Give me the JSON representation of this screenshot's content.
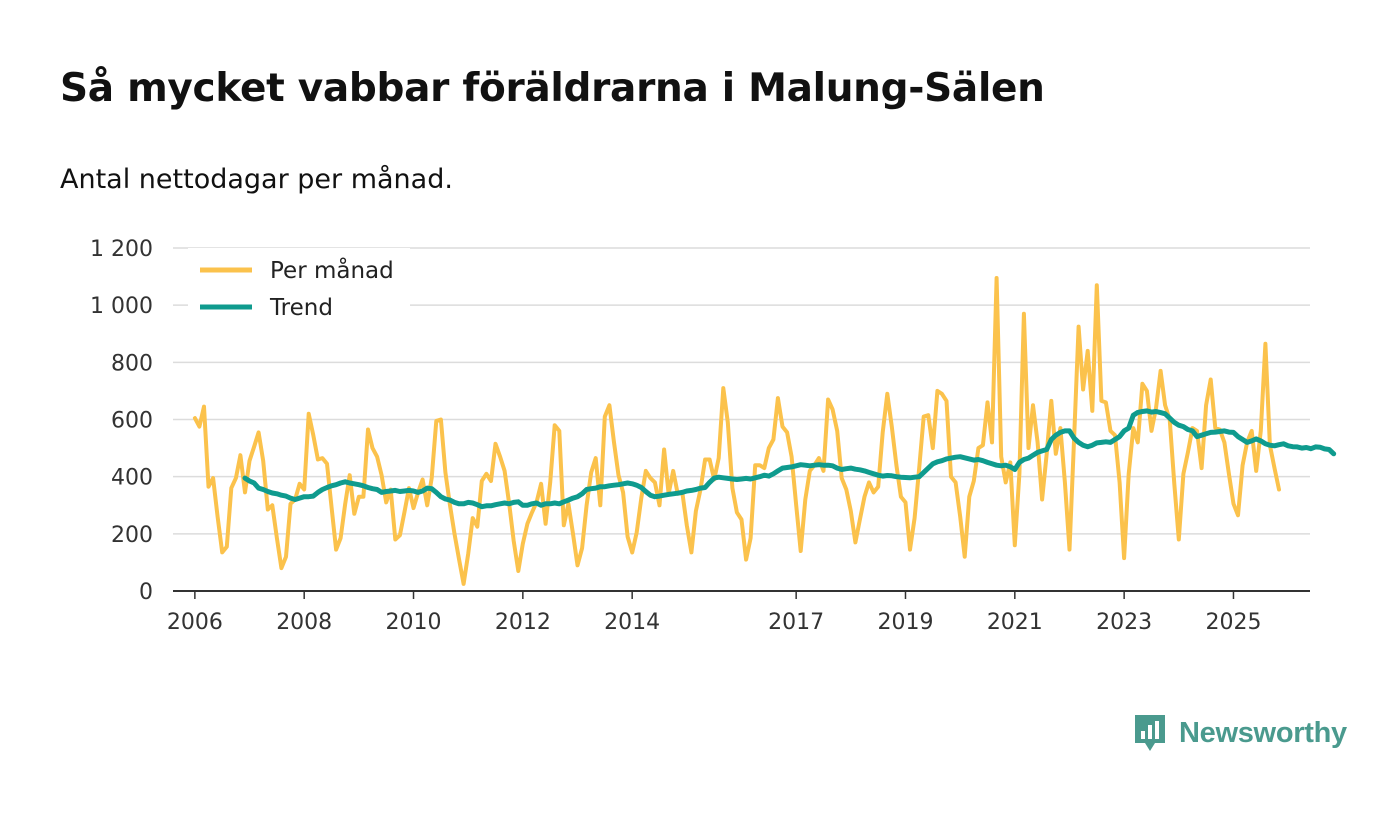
{
  "header": {
    "title": "Så mycket vabbar föräldrarna i Malung-Sälen",
    "subtitle": "Antal nettodagar per månad."
  },
  "brand": {
    "name": "Newsworthy",
    "color": "#4a9a8e",
    "icon": "newsworthy-logo-icon"
  },
  "chart_data": {
    "type": "line",
    "title": "Så mycket vabbar föräldrarna i Malung-Sälen",
    "subtitle": "Antal nettodagar per månad.",
    "xlabel": "",
    "ylabel": "",
    "ylim": [
      0,
      1200
    ],
    "xlim": [
      2005.6,
      2026.4
    ],
    "yticks": [
      0,
      200,
      400,
      600,
      800,
      1000,
      1200
    ],
    "ytick_labels": [
      "0",
      "200",
      "400",
      "600",
      "800",
      "1 000",
      "1 200"
    ],
    "xticks": [
      2006,
      2008,
      2010,
      2012,
      2014,
      2017,
      2019,
      2021,
      2023,
      2025
    ],
    "xtick_labels": [
      "2006",
      "2008",
      "2010",
      "2012",
      "2014",
      "2017",
      "2019",
      "2021",
      "2023",
      "2025"
    ],
    "grid": true,
    "legend": "top-left",
    "x": {
      "start_year": 2006,
      "start_month": 1,
      "step": "month",
      "length": 233,
      "note": "Monthly series; the x axis places January 2006 at 2006.0 and each month at 1/12 year."
    },
    "series": [
      {
        "name": "Per månad",
        "color": "#fbc24c",
        "values": [
          605,
          575,
          645,
          365,
          395,
          260,
          135,
          155,
          360,
          395,
          475,
          345,
          455,
          505,
          555,
          455,
          285,
          300,
          185,
          80,
          120,
          305,
          320,
          375,
          355,
          620,
          545,
          460,
          465,
          445,
          295,
          145,
          185,
          305,
          405,
          270,
          330,
          330,
          565,
          500,
          470,
          405,
          310,
          355,
          180,
          195,
          275,
          360,
          290,
          345,
          390,
          300,
          395,
          595,
          600,
          415,
          300,
          200,
          110,
          25,
          130,
          255,
          225,
          385,
          410,
          385,
          515,
          470,
          420,
          305,
          175,
          70,
          165,
          235,
          275,
          310,
          375,
          235,
          380,
          580,
          560,
          230,
          305,
          200,
          90,
          150,
          300,
          415,
          465,
          300,
          610,
          650,
          520,
          405,
          345,
          190,
          135,
          205,
          325,
          420,
          395,
          380,
          300,
          495,
          340,
          420,
          340,
          345,
          230,
          135,
          280,
          355,
          460,
          460,
          390,
          465,
          710,
          590,
          360,
          275,
          250,
          110,
          185,
          440,
          440,
          430,
          500,
          530,
          675,
          575,
          555,
          470,
          300,
          140,
          320,
          420,
          440,
          465,
          420,
          670,
          635,
          560,
          395,
          355,
          280,
          170,
          250,
          330,
          380,
          345,
          365,
          555,
          690,
          575,
          440,
          330,
          310,
          145,
          255,
          430,
          610,
          615,
          500,
          700,
          690,
          665,
          400,
          380,
          260,
          120,
          330,
          385,
          500,
          510,
          660,
          520,
          1095,
          470,
          380,
          450,
          160,
          410,
          970,
          500,
          650,
          520,
          320,
          480,
          665,
          480,
          570,
          380,
          145,
          525,
          925,
          705,
          840,
          630,
          1070,
          665,
          660,
          560,
          545,
          380,
          115,
          410,
          570,
          520,
          725,
          700,
          560,
          640,
          770,
          650,
          600,
          375,
          180,
          410,
          485,
          570,
          560,
          430,
          650,
          740,
          570,
          565,
          520,
          410,
          305,
          265,
          440,
          520,
          560,
          420,
          560,
          865,
          510,
          430,
          355
        ]
      },
      {
        "name": "Trend",
        "color": "#0f9b8e",
        "start_index": 11,
        "values": [
          395,
          385,
          378,
          360,
          355,
          348,
          343,
          340,
          335,
          332,
          325,
          320,
          325,
          330,
          330,
          332,
          345,
          355,
          362,
          368,
          372,
          378,
          382,
          378,
          375,
          372,
          368,
          362,
          358,
          355,
          345,
          348,
          350,
          352,
          348,
          350,
          352,
          350,
          345,
          350,
          360,
          358,
          345,
          330,
          322,
          318,
          310,
          305,
          305,
          310,
          308,
          302,
          295,
          298,
          298,
          302,
          305,
          308,
          305,
          310,
          312,
          300,
          300,
          305,
          308,
          300,
          305,
          305,
          308,
          305,
          312,
          318,
          325,
          330,
          340,
          355,
          358,
          360,
          365,
          365,
          368,
          370,
          372,
          375,
          378,
          375,
          370,
          362,
          348,
          335,
          330,
          332,
          335,
          338,
          340,
          342,
          345,
          350,
          352,
          355,
          360,
          362,
          380,
          395,
          398,
          396,
          394,
          392,
          390,
          392,
          394,
          392,
          396,
          400,
          405,
          402,
          410,
          420,
          430,
          432,
          434,
          438,
          442,
          440,
          438,
          440,
          442,
          440,
          440,
          438,
          430,
          425,
          428,
          430,
          426,
          424,
          420,
          415,
          410,
          405,
          402,
          404,
          403,
          400,
          398,
          397,
          396,
          398,
          400,
          415,
          430,
          445,
          452,
          456,
          462,
          465,
          468,
          470,
          466,
          462,
          458,
          460,
          456,
          450,
          445,
          440,
          438,
          440,
          435,
          425,
          450,
          460,
          465,
          475,
          485,
          490,
          495,
          530,
          545,
          555,
          560,
          560,
          535,
          520,
          510,
          505,
          510,
          518,
          520,
          522,
          520,
          530,
          540,
          560,
          570,
          615,
          625,
          628,
          630,
          626,
          628,
          624,
          620,
          605,
          590,
          580,
          575,
          565,
          560,
          540,
          545,
          550,
          555,
          556,
          558,
          560,
          556,
          555,
          540,
          530,
          520,
          525,
          532,
          525,
          515,
          510,
          508,
          512,
          515,
          508,
          505,
          504,
          500,
          502,
          498,
          504,
          503,
          497,
          495,
          480
        ]
      }
    ]
  }
}
